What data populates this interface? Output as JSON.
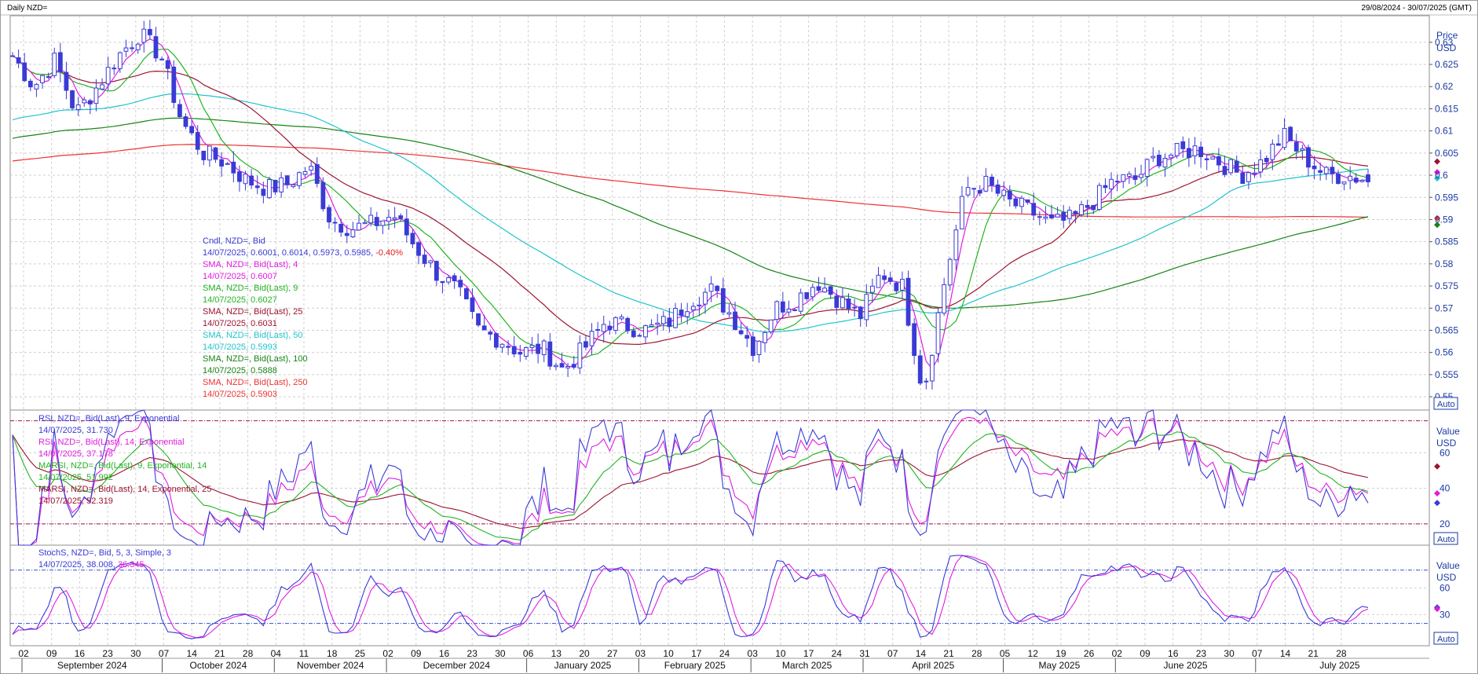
{
  "header": {
    "title": "Daily NZD=",
    "range": "29/08/2024 - 30/07/2025 (GMT)"
  },
  "colors": {
    "candle": "#3a3ad6",
    "sma4": "#e01ce0",
    "sma9": "#22b422",
    "sma25": "#9c1430",
    "sma50": "#20c4cc",
    "sma100": "#168416",
    "sma250": "#ee3232",
    "rsi9": "#3a3ad6",
    "rsi14": "#e01ce0",
    "marsi9": "#22b422",
    "marsi14": "#9c1430",
    "stochK": "#3a3ad6",
    "stochD": "#e01ce0",
    "guide": "#a0105a",
    "stochGuide": "#3050d0"
  },
  "price_panel": {
    "axis_title": "Price",
    "axis_unit": "USD",
    "auto": "Auto",
    "legend": [
      {
        "label": "Cndl, NZD=, Bid",
        "value": "14/07/2025, 0.6001, 0.6014, 0.5973, 0.5985,",
        "change": "-0.40%",
        "color": "#3a3ad6"
      },
      {
        "label": "SMA, NZD=, Bid(Last), 4",
        "value": "14/07/2025, 0.6007",
        "color": "#e01ce0"
      },
      {
        "label": "SMA, NZD=, Bid(Last), 9",
        "value": "14/07/2025, 0.6027",
        "color": "#22b422"
      },
      {
        "label": "SMA, NZD=, Bid(Last), 25",
        "value": "14/07/2025, 0.6031",
        "color": "#9c1430"
      },
      {
        "label": "SMA, NZD=, Bid(Last), 50",
        "value": "14/07/2025, 0.5993",
        "color": "#20c4cc"
      },
      {
        "label": "SMA, NZD=, Bid(Last), 100",
        "value": "14/07/2025, 0.5888",
        "color": "#168416"
      },
      {
        "label": "SMA, NZD=, Bid(Last), 250",
        "value": "14/07/2025, 0.5903",
        "color": "#ee3232"
      }
    ]
  },
  "rsi_panel": {
    "axis_title": "Value",
    "axis_unit": "USD",
    "auto": "Auto",
    "legend": [
      {
        "label": "RSI, NZD=, Bid(Last), 9, Exponential",
        "value": "14/07/2025, 31.730",
        "color": "#3a3ad6"
      },
      {
        "label": "RSI, NZD=, Bid(Last), 14, Exponential",
        "value": "14/07/2025, 37.178",
        "color": "#e01ce0"
      },
      {
        "label": "MARSI, NZD=, Bid(Last), 9, Exponential, 14",
        "value": "14/07/2025, 51.992",
        "color": "#22b422"
      },
      {
        "label": "MARSI, NZD=, Bid(Last), 14, Exponential, 25",
        "value": "14/07/2025, 52.319",
        "color": "#9c1430"
      }
    ]
  },
  "stoch_panel": {
    "axis_title": "Value",
    "axis_unit": "USD",
    "auto": "Auto",
    "legend": [
      {
        "label": "StochS, NZD=, Bid,  5, 3, Simple, 3",
        "value": "14/07/2025, 38.008,",
        "value2": "36.345",
        "color": "#3a3ad6",
        "color2": "#e01ce0"
      }
    ]
  },
  "chart_data": [
    {
      "type": "candlestick",
      "title": "Daily NZD=",
      "ylabel": "Price USD",
      "ylim": [
        0.547,
        0.636
      ],
      "yticks": [
        "0.63",
        "0.625",
        "0.62",
        "0.615",
        "0.61",
        "0.605",
        "0.6",
        "0.595",
        "0.59",
        "0.585",
        "0.58",
        "0.575",
        "0.57",
        "0.565",
        "0.56",
        "0.555",
        "0.55"
      ],
      "x_day_ticks": [
        "02",
        "09",
        "16",
        "23",
        "30",
        "07",
        "14",
        "21",
        "28",
        "04",
        "11",
        "18",
        "25",
        "02",
        "09",
        "16",
        "23",
        "30",
        "06",
        "13",
        "20",
        "27",
        "03",
        "10",
        "17",
        "24",
        "03",
        "10",
        "17",
        "24",
        "31",
        "07",
        "14",
        "21",
        "28",
        "05",
        "12",
        "19",
        "26",
        "02",
        "09",
        "16",
        "23",
        "30",
        "07",
        "14",
        "21",
        "28"
      ],
      "x_month_labels": [
        "September 2024",
        "October 2024",
        "November 2024",
        "December 2024",
        "January 2025",
        "February 2025",
        "March 2025",
        "April 2025",
        "May 2025",
        "June 2025",
        "July 2025"
      ],
      "close_anchors": [
        0.627,
        0.62,
        0.626,
        0.614,
        0.62,
        0.627,
        0.632,
        0.627,
        0.612,
        0.605,
        0.603,
        0.599,
        0.597,
        0.598,
        0.602,
        0.59,
        0.588,
        0.589,
        0.591,
        0.584,
        0.578,
        0.574,
        0.565,
        0.563,
        0.56,
        0.561,
        0.556,
        0.561,
        0.567,
        0.566,
        0.565,
        0.567,
        0.572,
        0.574,
        0.568,
        0.561,
        0.57,
        0.572,
        0.576,
        0.572,
        0.568,
        0.578,
        0.575,
        0.551,
        0.576,
        0.597,
        0.598,
        0.594,
        0.592,
        0.589,
        0.59,
        0.594,
        0.599,
        0.599,
        0.604,
        0.605,
        0.606,
        0.603,
        0.6,
        0.603,
        0.609,
        0.604,
        0.6,
        0.6,
        0.599
      ],
      "last_ohlc": [
        0.6001,
        0.6014,
        0.5973,
        0.5985
      ],
      "series_last": {
        "SMA 4": 0.6007,
        "SMA 9": 0.6027,
        "SMA 25": 0.6031,
        "SMA 50": 0.5993,
        "SMA 100": 0.5888,
        "SMA 250": 0.5903
      }
    },
    {
      "type": "line",
      "ylabel": "Value USD",
      "ylim": [
        8,
        84
      ],
      "yticks": [
        "60",
        "40",
        "20"
      ],
      "guides": [
        78,
        20
      ],
      "series_last": {
        "RSI 9": 31.73,
        "RSI 14": 37.178,
        "MARSI 9": 51.992,
        "MARSI 14": 52.319
      }
    },
    {
      "type": "line",
      "ylabel": "Value USD",
      "ylim": [
        -5,
        108
      ],
      "yticks": [
        "60",
        "30"
      ],
      "guides": [
        80,
        20
      ],
      "series_last": {
        "%K": 38.008,
        "%D": 36.345
      }
    }
  ]
}
